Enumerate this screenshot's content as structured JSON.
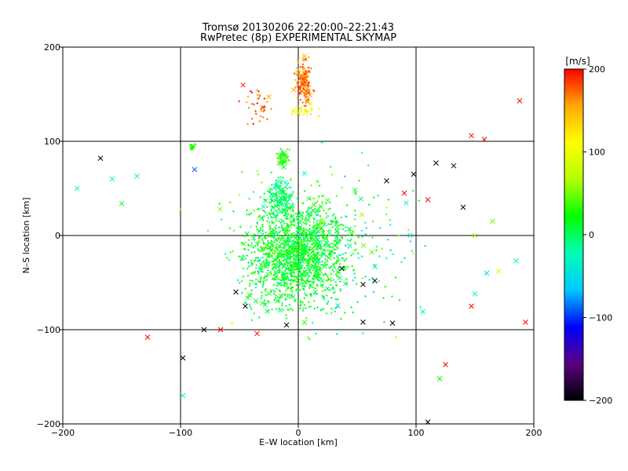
{
  "chart_data": {
    "type": "scatter",
    "title": "Tromsø 20130206 22:20:00–22:21:43",
    "subtitle": "RwPretec (8p) EXPERIMENTAL SKYMAP",
    "xlabel": "E–W location [km]",
    "ylabel": "N–S location [km]",
    "xlim": [
      -200,
      200
    ],
    "ylim": [
      -200,
      200
    ],
    "xticks": [
      -200,
      -100,
      0,
      100,
      200
    ],
    "yticks": [
      -200,
      -100,
      0,
      100,
      200
    ],
    "x_tick_labels": [
      "−200",
      "−100",
      "0",
      "100",
      "200"
    ],
    "y_tick_labels": [
      "−200",
      "−100",
      "0",
      "100",
      "200"
    ],
    "grid": true,
    "colorbar": {
      "label": "[m/s]",
      "range": [
        -200,
        200
      ],
      "ticks": [
        200,
        100,
        0,
        -100,
        -200
      ],
      "tick_labels": [
        "200",
        "100",
        "0",
        "−100",
        "−200"
      ],
      "colormap": [
        "#000000",
        "#5a0080",
        "#0000ff",
        "#00c8ff",
        "#00ffb4",
        "#00ff00",
        "#b4ff00",
        "#ffff00",
        "#ffaa00",
        "#ff0000"
      ]
    },
    "markers": {
      "large": "x",
      "small": "+"
    },
    "clusters": [
      {
        "x": [
          -5,
          15
        ],
        "y": [
          130,
          195
        ],
        "v": [
          140,
          200
        ],
        "n": 150
      },
      {
        "x": [
          -55,
          -15
        ],
        "y": [
          115,
          165
        ],
        "v": [
          150,
          200
        ],
        "n": 40
      },
      {
        "x": [
          -10,
          20
        ],
        "y": [
          125,
          140
        ],
        "v": [
          90,
          130
        ],
        "n": 30
      },
      {
        "x": [
          -20,
          -5
        ],
        "y": [
          70,
          95
        ],
        "v": [
          10,
          50
        ],
        "n": 50
      },
      {
        "x": [
          -30,
          0
        ],
        "y": [
          10,
          70
        ],
        "v": [
          -30,
          20
        ],
        "n": 150
      },
      {
        "x": [
          -60,
          60
        ],
        "y": [
          -100,
          60
        ],
        "v": [
          -10,
          40
        ],
        "n": 1400
      },
      {
        "x": [
          -110,
          140
        ],
        "y": [
          -130,
          110
        ],
        "v": [
          -60,
          70
        ],
        "n": 280
      },
      {
        "x": [
          -95,
          -85
        ],
        "y": [
          90,
          100
        ],
        "v": [
          20,
          40
        ],
        "n": 15
      }
    ],
    "x_points": [
      {
        "x": -168,
        "y": 82,
        "v": -200
      },
      {
        "x": -137,
        "y": 63,
        "v": -30
      },
      {
        "x": -158,
        "y": 60,
        "v": -20
      },
      {
        "x": -188,
        "y": 50,
        "v": -20
      },
      {
        "x": -150,
        "y": 34,
        "v": 20
      },
      {
        "x": -128,
        "y": -108,
        "v": 200
      },
      {
        "x": -98,
        "y": -130,
        "v": -200
      },
      {
        "x": -98,
        "y": -170,
        "v": -20
      },
      {
        "x": -88,
        "y": 70,
        "v": -90
      },
      {
        "x": 98,
        "y": 65,
        "v": -200
      },
      {
        "x": 117,
        "y": 77,
        "v": -200
      },
      {
        "x": 132,
        "y": 74,
        "v": -200
      },
      {
        "x": 147,
        "y": 106,
        "v": 200
      },
      {
        "x": 158,
        "y": 102,
        "v": 200
      },
      {
        "x": 188,
        "y": 143,
        "v": 200
      },
      {
        "x": 75,
        "y": 58,
        "v": -200
      },
      {
        "x": 90,
        "y": 45,
        "v": 200
      },
      {
        "x": 110,
        "y": 38,
        "v": 200
      },
      {
        "x": 140,
        "y": 30,
        "v": -200
      },
      {
        "x": 165,
        "y": 15,
        "v": 50
      },
      {
        "x": 150,
        "y": 0,
        "v": 60
      },
      {
        "x": 185,
        "y": -27,
        "v": -20
      },
      {
        "x": 160,
        "y": -40,
        "v": -50
      },
      {
        "x": 150,
        "y": -62,
        "v": -20
      },
      {
        "x": 147,
        "y": -75,
        "v": 200
      },
      {
        "x": 193,
        "y": -92,
        "v": 200
      },
      {
        "x": 125,
        "y": -137,
        "v": 200
      },
      {
        "x": 120,
        "y": -152,
        "v": 20
      },
      {
        "x": 110,
        "y": -198,
        "v": -200
      },
      {
        "x": 80,
        "y": -93,
        "v": -200
      },
      {
        "x": 55,
        "y": -92,
        "v": -200
      },
      {
        "x": 65,
        "y": -48,
        "v": -200
      },
      {
        "x": 55,
        "y": -52,
        "v": -200
      },
      {
        "x": 37,
        "y": -35,
        "v": -200
      },
      {
        "x": -53,
        "y": -60,
        "v": -200
      },
      {
        "x": -45,
        "y": -75,
        "v": -200
      },
      {
        "x": -80,
        "y": -100,
        "v": -200
      },
      {
        "x": -66,
        "y": -100,
        "v": 200
      },
      {
        "x": -35,
        "y": -104,
        "v": 200
      },
      {
        "x": -10,
        "y": -95,
        "v": -200
      },
      {
        "x": 95,
        "y": 0,
        "v": -30
      },
      {
        "x": 170,
        "y": -38,
        "v": 120
      }
    ]
  }
}
